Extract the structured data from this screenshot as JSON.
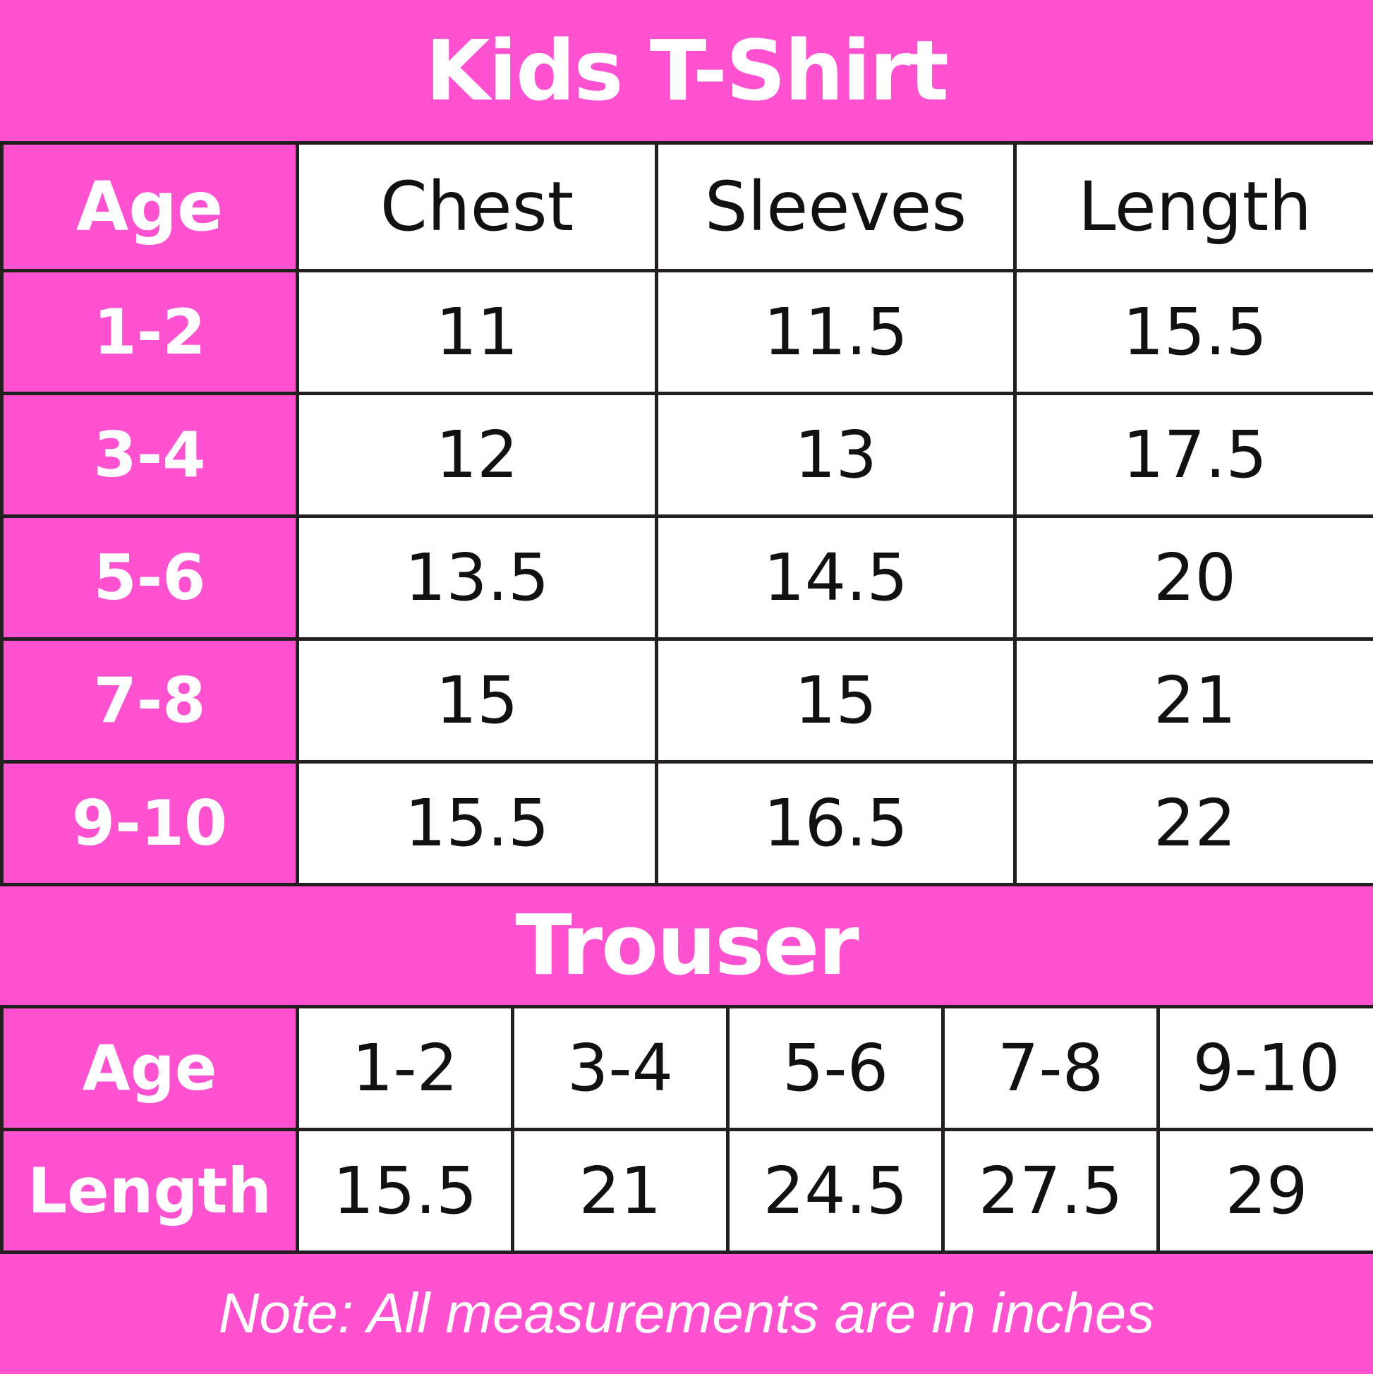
{
  "colors": {
    "accent": "#FF52D0",
    "border": "#231f20",
    "cell": "#FFFFFF"
  },
  "tshirt": {
    "title": "Kids T-Shirt",
    "headers": [
      "Age",
      "Chest",
      "Sleeves",
      "Length"
    ],
    "rows": [
      [
        "1-2",
        "11",
        "11.5",
        "15.5"
      ],
      [
        "3-4",
        "12",
        "13",
        "17.5"
      ],
      [
        "5-6",
        "13.5",
        "14.5",
        "20"
      ],
      [
        "7-8",
        "15",
        "15",
        "21"
      ],
      [
        "9-10",
        "15.5",
        "16.5",
        "22"
      ]
    ]
  },
  "trouser": {
    "title": "Trouser",
    "rows": [
      [
        "Age",
        "1-2",
        "3-4",
        "5-6",
        "7-8",
        "9-10"
      ],
      [
        "Length",
        "15.5",
        "21",
        "24.5",
        "27.5",
        "29"
      ]
    ]
  },
  "note": "Note: All measurements are in inches"
}
